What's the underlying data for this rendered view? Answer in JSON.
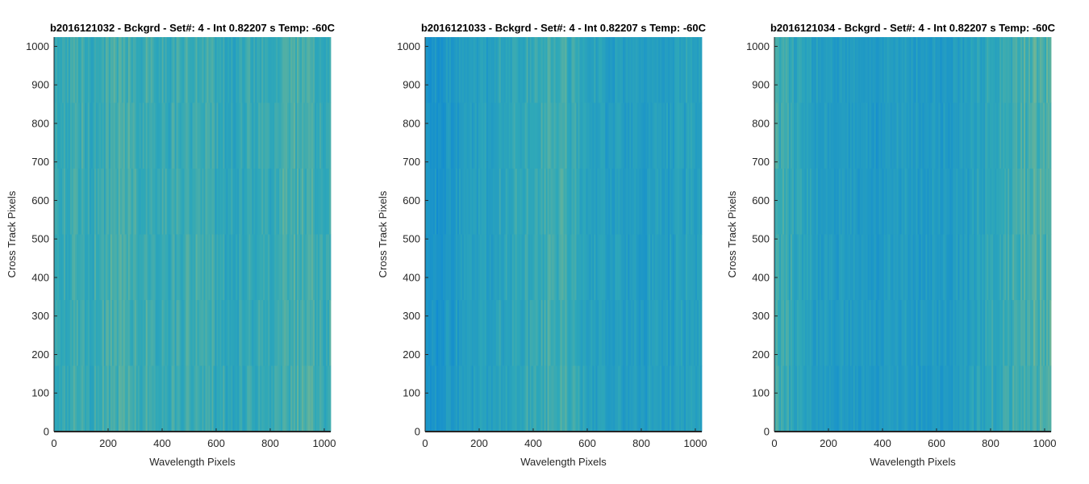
{
  "colormap": {
    "name": "parula",
    "dark": "#0c86d6",
    "mid": "#2fa8b8",
    "light": "#b4c46e"
  },
  "chart_data": [
    {
      "type": "heatmap",
      "title": "b2016121032 - Bckgrd - Set#: 4 - Int 0.82207 s Temp: -60C",
      "xlabel": "Wavelength Pixels",
      "ylabel": "Cross Track Pixels",
      "xlim": [
        0,
        1024
      ],
      "ylim": [
        0,
        1024
      ],
      "xticks": [
        0,
        200,
        400,
        600,
        800,
        1000
      ],
      "yticks": [
        0,
        100,
        200,
        300,
        400,
        500,
        600,
        700,
        800,
        900,
        1000
      ],
      "column_profile": {
        "x": [
          0,
          60,
          150,
          250,
          300,
          400,
          500,
          600,
          700,
          800,
          880,
          950,
          1024
        ],
        "level": [
          0.45,
          0.55,
          0.5,
          0.62,
          0.58,
          0.52,
          0.55,
          0.5,
          0.48,
          0.5,
          0.6,
          0.55,
          0.5
        ]
      },
      "noise": 0.12
    },
    {
      "type": "heatmap",
      "title": "b2016121033 - Bckgrd - Set#: 4 - Int 0.82207 s Temp: -60C",
      "xlabel": "Wavelength Pixels",
      "ylabel": "Cross Track Pixels",
      "xlim": [
        0,
        1024
      ],
      "ylim": [
        0,
        1024
      ],
      "xticks": [
        0,
        200,
        400,
        600,
        800,
        1000
      ],
      "yticks": [
        0,
        100,
        200,
        300,
        400,
        500,
        600,
        700,
        800,
        900,
        1000
      ],
      "column_profile": {
        "x": [
          0,
          100,
          200,
          300,
          400,
          480,
          560,
          650,
          750,
          850,
          950,
          1024
        ],
        "level": [
          0.2,
          0.28,
          0.38,
          0.45,
          0.5,
          0.6,
          0.48,
          0.38,
          0.33,
          0.33,
          0.38,
          0.4
        ]
      },
      "noise": 0.12
    },
    {
      "type": "heatmap",
      "title": "b2016121034 - Bckgrd - Set#: 4 - Int 0.82207 s Temp: -60C",
      "xlabel": "Wavelength Pixels",
      "ylabel": "Cross Track Pixels",
      "xlim": [
        0,
        1024
      ],
      "ylim": [
        0,
        1024
      ],
      "xticks": [
        0,
        200,
        400,
        600,
        800,
        1000
      ],
      "yticks": [
        0,
        100,
        200,
        300,
        400,
        500,
        600,
        700,
        800,
        900,
        1000
      ],
      "column_profile": {
        "x": [
          0,
          80,
          200,
          300,
          400,
          500,
          600,
          700,
          800,
          900,
          960,
          1024
        ],
        "level": [
          0.55,
          0.45,
          0.3,
          0.28,
          0.3,
          0.33,
          0.3,
          0.35,
          0.45,
          0.55,
          0.62,
          0.6
        ]
      },
      "noise": 0.12
    }
  ]
}
